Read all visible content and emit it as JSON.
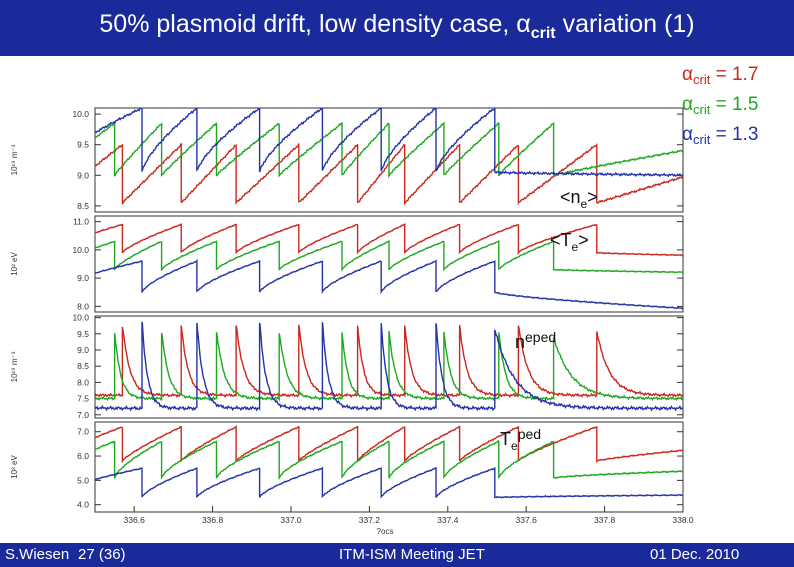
{
  "header": {
    "title_main": "50% plasmoid drift, low density case, ",
    "alpha": "α",
    "crit": "crit",
    "title_end": " variation (1)"
  },
  "legend": {
    "items": [
      {
        "alpha": "α",
        "sub": "crit",
        "text": " = 1.7",
        "color": "#c8281e"
      },
      {
        "alpha": "α",
        "sub": "crit",
        "text": " = 1.5",
        "color": "#1fa81f"
      },
      {
        "alpha": "α",
        "sub": "crit",
        "text": " = 1.3",
        "color": "#2333a8"
      }
    ]
  },
  "footer": {
    "author": "S.Wiesen",
    "page": "27 (36)",
    "meeting": "ITM-ISM Meeting JET",
    "date": "01 Dec. 2010"
  },
  "chart_data": {
    "type": "line",
    "xlabel": "?ocs",
    "xlim": [
      336.5,
      338.0
    ],
    "xticks": [
      "336.6",
      "336.8",
      "337.0",
      "337.2",
      "337.4",
      "337.6",
      "337.8",
      "338.0"
    ],
    "xtick_values": [
      336.6,
      336.8,
      337.0,
      337.2,
      337.4,
      337.6,
      337.8,
      338.0
    ],
    "series_colors": {
      "a17": "#c8281e",
      "a15": "#1fa81f",
      "a13": "#2333a8"
    },
    "panels": [
      {
        "key": "ne",
        "ylabel": "10¹⁹ m⁻³",
        "ylim": [
          8.4,
          10.1
        ],
        "yticks": [
          8.5,
          9.0,
          9.5,
          10.0
        ],
        "ytick_labels": [
          "8.5",
          "9.0",
          "9.5",
          "10.0"
        ],
        "annotation": {
          "pre": "<n",
          "sub": "e",
          "post": ">"
        },
        "series": [
          {
            "color_key": "a17",
            "base": 8.55,
            "peak": 9.5,
            "shape": 0.0,
            "crashes": [
              336.57,
              336.72,
              336.86,
              337.02,
              337.17,
              337.29,
              337.43,
              337.58,
              337.78
            ],
            "end": 9.05
          },
          {
            "color_key": "a15",
            "base": 9.0,
            "peak": 9.85,
            "shape": 0.1,
            "crashes": [
              336.55,
              336.67,
              336.81,
              336.97,
              337.13,
              337.25,
              337.39,
              337.53,
              337.67
            ],
            "end": 9.45
          },
          {
            "color_key": "a13",
            "base": 9.05,
            "peak": 10.1,
            "shape": 0.5,
            "crashes": [
              336.62,
              336.76,
              336.92,
              337.08,
              337.23,
              337.37,
              337.52
            ],
            "end": 9.0
          }
        ]
      },
      {
        "key": "te",
        "ylabel": "10² eV",
        "ylim": [
          7.8,
          11.2
        ],
        "yticks": [
          8.0,
          9.0,
          10.0,
          11.0
        ],
        "ytick_labels": [
          "8.0",
          "9.0",
          "10.0",
          "11.0"
        ],
        "annotation": {
          "pre": "<T",
          "sub": "e",
          "post": ">"
        },
        "series": [
          {
            "color_key": "a17",
            "base": 9.9,
            "peak": 10.9,
            "shape": 0.4,
            "crashes": [
              336.57,
              336.72,
              336.86,
              337.02,
              337.17,
              337.29,
              337.43,
              337.58,
              337.78
            ],
            "end": 9.8
          },
          {
            "color_key": "a15",
            "base": 9.3,
            "peak": 10.3,
            "shape": 0.4,
            "crashes": [
              336.55,
              336.67,
              336.81,
              336.97,
              337.13,
              337.25,
              337.39,
              337.53,
              337.67
            ],
            "end": 9.2
          },
          {
            "color_key": "a13",
            "base": 8.5,
            "peak": 9.6,
            "shape": 0.5,
            "crashes": [
              336.62,
              336.76,
              336.92,
              337.08,
              337.23,
              337.37,
              337.52
            ],
            "end": 7.9
          }
        ]
      },
      {
        "key": "neped",
        "ylabel": "10¹⁹ m⁻³",
        "ylim": [
          6.9,
          10.05
        ],
        "yticks": [
          7.0,
          7.5,
          8.0,
          8.5,
          9.0,
          9.5,
          10.0
        ],
        "ytick_labels": [
          "7.0",
          "7.5",
          "8.0",
          "8.5",
          "9.0",
          "9.5",
          "10.0"
        ],
        "annotation": {
          "pre": "n",
          "sub": "",
          "sup": "eped",
          "post": ""
        },
        "series": [
          {
            "color_key": "a17",
            "base": 7.6,
            "peak": 9.8,
            "shape": 4.0,
            "crashes": [
              336.57,
              336.72,
              336.86,
              337.02,
              337.17,
              337.29,
              337.43,
              337.58,
              337.78
            ],
            "end": 7.6
          },
          {
            "color_key": "a15",
            "base": 7.5,
            "peak": 9.6,
            "shape": 4.0,
            "crashes": [
              336.55,
              336.67,
              336.81,
              336.97,
              337.13,
              337.25,
              337.39,
              337.53,
              337.67
            ],
            "end": 7.5
          },
          {
            "color_key": "a13",
            "base": 7.2,
            "peak": 9.9,
            "shape": 5.0,
            "crashes": [
              336.62,
              336.76,
              336.92,
              337.08,
              337.23,
              337.37,
              337.52
            ],
            "end": 7.4
          }
        ]
      },
      {
        "key": "teped",
        "ylabel": "10² eV",
        "ylim": [
          3.7,
          7.4
        ],
        "yticks": [
          4.0,
          5.0,
          6.0,
          7.0
        ],
        "ytick_labels": [
          "4.0",
          "5.0",
          "6.0",
          "7.0"
        ],
        "annotation": {
          "pre": "T",
          "sub": "e",
          "sup": "ped",
          "post": ""
        },
        "series": [
          {
            "color_key": "a17",
            "base": 5.8,
            "peak": 7.2,
            "shape": 0.3,
            "crashes": [
              336.57,
              336.72,
              336.86,
              337.02,
              337.17,
              337.29,
              337.43,
              337.58,
              337.78
            ],
            "end": 6.3
          },
          {
            "color_key": "a15",
            "base": 5.1,
            "peak": 6.6,
            "shape": 0.5,
            "crashes": [
              336.55,
              336.67,
              336.81,
              336.97,
              337.13,
              337.25,
              337.39,
              337.53,
              337.67
            ],
            "end": 5.4
          },
          {
            "color_key": "a13",
            "base": 4.3,
            "peak": 5.5,
            "shape": 0.5,
            "crashes": [
              336.62,
              336.76,
              336.92,
              337.08,
              337.23,
              337.37,
              337.52
            ],
            "end": 4.4
          }
        ]
      }
    ]
  }
}
